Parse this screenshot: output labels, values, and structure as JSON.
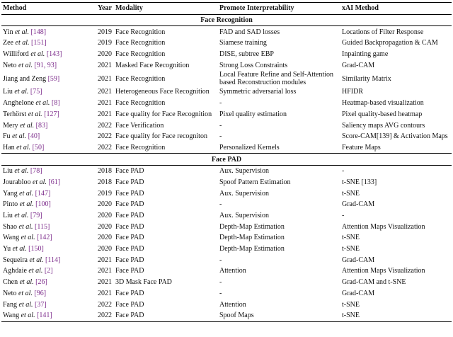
{
  "table": {
    "header": [
      "Method",
      "Year",
      "Modality",
      "Promote Interpretability",
      "xAI Method"
    ],
    "sections": [
      {
        "title": "Face Recognition",
        "rows": [
          {
            "method": {
              "author": "Yin",
              "etal": "et al.",
              "ref": "[148]"
            },
            "year": 2019,
            "modality": "Face Recognition",
            "interpretability": "FAD and SAD losses",
            "xai": "Locations of Filter Response"
          },
          {
            "method": {
              "author": "Zee",
              "etal": "et al.",
              "ref": "[151]"
            },
            "year": 2019,
            "modality": "Face Recognition",
            "interpretability": "Siamese training",
            "xai": "Guided Backpropagation & CAM"
          },
          {
            "method": {
              "author": "Williford",
              "etal": "et al.",
              "ref": "[143]"
            },
            "year": 2020,
            "modality": "Face Recognition",
            "interpretability": "DISE, subtree EBP",
            "xai": "Inpainting game"
          },
          {
            "method": {
              "author": "Neto",
              "etal": "et al.",
              "ref": "[91, 93]"
            },
            "year": 2021,
            "modality": "Masked Face Recognition",
            "interpretability": "Strong Loss Constraints",
            "xai": "Grad-CAM"
          },
          {
            "method": {
              "author": "Jiang and Zeng",
              "ref": "[59]"
            },
            "year": 2021,
            "modality": "Face Recognition",
            "interpretability": "Local Feature Refine and Self-Attention based Reconstruction modules",
            "xai": "Similarity Matrix"
          },
          {
            "method": {
              "author": "Liu",
              "etal": "et al.",
              "ref": "[75]"
            },
            "year": 2021,
            "modality": "Heterogeneous Face Recognition",
            "interpretability": "Symmetric adversarial loss",
            "xai": "HFIDR"
          },
          {
            "method": {
              "author": "Anghelone",
              "etal": "et al.",
              "ref": "[8]"
            },
            "year": 2021,
            "modality": "Face Recognition",
            "interpretability": "-",
            "xai": "Heatmap-based visualization"
          },
          {
            "method": {
              "author": "Terhörst",
              "etal": "et al.",
              "ref": "[127]"
            },
            "year": 2021,
            "modality": "Face quality for Face Recognition",
            "interpretability": "Pixel quality estimation",
            "xai": "Pixel quality-based heatmap"
          },
          {
            "method": {
              "author": "Mery",
              "etal": "et al.",
              "ref": "[83]"
            },
            "year": 2022,
            "modality": "Face Verification",
            "interpretability": "-",
            "xai": "Saliency maps AVG contours"
          },
          {
            "method": {
              "author": "Fu",
              "etal": "et al.",
              "ref": "[40]"
            },
            "year": 2022,
            "modality": "Face quality for Face recogniton",
            "interpretability": "-",
            "xai": "Score-CAM[139] & Activation Maps"
          },
          {
            "method": {
              "author": "Han",
              "etal": "et al.",
              "ref": "[50]"
            },
            "year": 2022,
            "modality": "Face Recognition",
            "interpretability": "Personalized Kernels",
            "xai": "Feature Maps"
          }
        ]
      },
      {
        "title": "Face PAD",
        "rows": [
          {
            "method": {
              "author": "Liu",
              "etal": "et al.",
              "ref": "[78]"
            },
            "year": 2018,
            "modality": "Face PAD",
            "interpretability": "Aux. Supervision",
            "xai": "-"
          },
          {
            "method": {
              "author": "Jourabloo",
              "etal": "et al.",
              "ref": "[61]"
            },
            "year": 2018,
            "modality": "Face PAD",
            "interpretability": "Spoof Pattern Estimation",
            "xai": "t-SNE [133]"
          },
          {
            "method": {
              "author": "Yang",
              "etal": "et al.",
              "ref": "[147]"
            },
            "year": 2019,
            "modality": "Face PAD",
            "interpretability": "Aux. Supervision",
            "xai": "t-SNE"
          },
          {
            "method": {
              "author": "Pinto",
              "etal": "et al.",
              "ref": "[100]"
            },
            "year": 2020,
            "modality": "Face PAD",
            "interpretability": "-",
            "xai": "Grad-CAM"
          },
          {
            "method": {
              "author": "Liu",
              "etal": "et al.",
              "ref": "[79]"
            },
            "year": 2020,
            "modality": "Face PAD",
            "interpretability": "Aux. Supervision",
            "xai": "-"
          },
          {
            "method": {
              "author": "Shao",
              "etal": "et al.",
              "ref": "[115]"
            },
            "year": 2020,
            "modality": "Face PAD",
            "interpretability": "Depth-Map Estimation",
            "xai": "Attention Maps Visualization"
          },
          {
            "method": {
              "author": "Wang",
              "etal": "et al.",
              "ref": "[142]"
            },
            "year": 2020,
            "modality": "Face PAD",
            "interpretability": "Depth-Map Estimation",
            "xai": "t-SNE"
          },
          {
            "method": {
              "author": "Yu",
              "etal": "et al.",
              "ref": "[150]"
            },
            "year": 2020,
            "modality": "Face PAD",
            "interpretability": "Depth-Map Estimation",
            "xai": "t-SNE"
          },
          {
            "method": {
              "author": "Sequeira",
              "etal": "et al.",
              "ref": "[114]"
            },
            "year": 2021,
            "modality": "Face PAD",
            "interpretability": "-",
            "xai": "Grad-CAM"
          },
          {
            "method": {
              "author": "Aghdaie",
              "etal": "et al.",
              "ref": "[2]"
            },
            "year": 2021,
            "modality": "Face PAD",
            "interpretability": "Attention",
            "xai": "Attention Maps Visualization"
          },
          {
            "method": {
              "author": "Chen",
              "etal": "et al.",
              "ref": "[26]"
            },
            "year": 2021,
            "modality": "3D Mask Face PAD",
            "interpretability": "-",
            "xai": "Grad-CAM and t-SNE"
          },
          {
            "method": {
              "author": "Neto",
              "etal": "et al.",
              "ref": "[96]"
            },
            "year": 2021,
            "modality": "Face PAD",
            "interpretability": "-",
            "xai": "Grad-CAM"
          },
          {
            "method": {
              "author": "Fang",
              "etal": "et al.",
              "ref": "[37]"
            },
            "year": 2022,
            "modality": "Face PAD",
            "interpretability": "Attention",
            "xai": "t-SNE"
          },
          {
            "method": {
              "author": "Wang",
              "etal": "et al.",
              "ref": "[141]"
            },
            "year": 2022,
            "modality": "Face PAD",
            "interpretability": "Spoof Maps",
            "xai": "t-SNE"
          }
        ]
      }
    ]
  }
}
